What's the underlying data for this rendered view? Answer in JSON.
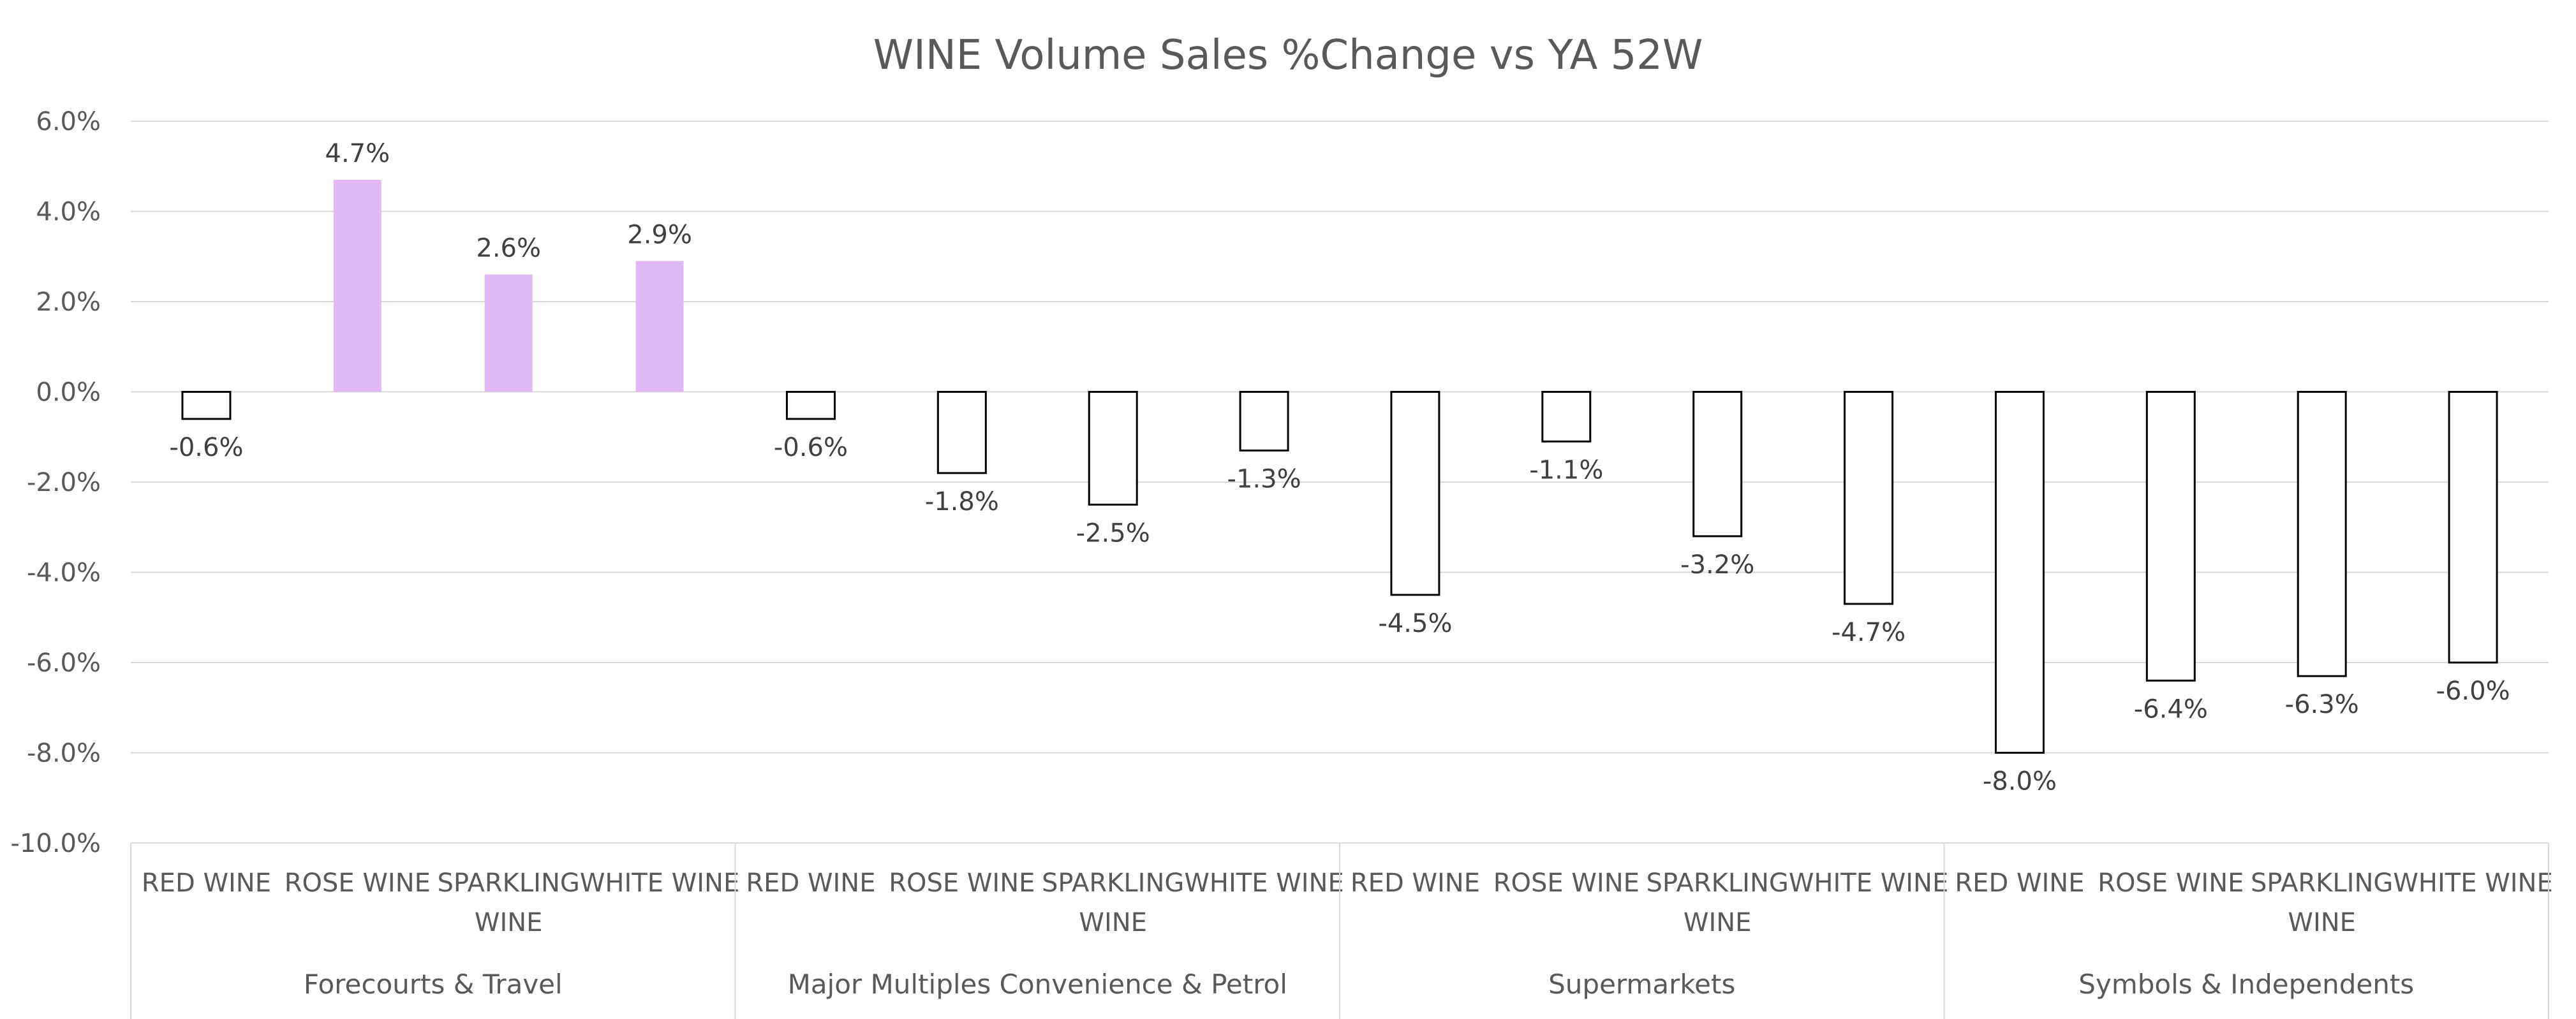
{
  "chart_data": {
    "type": "bar",
    "title": "WINE Volume Sales %Change vs YA  52W",
    "ylim": [
      -10,
      6
    ],
    "yticks": [
      6,
      4,
      2,
      0,
      -2,
      -4,
      -6,
      -8,
      -10
    ],
    "ytick_labels": [
      "6.0%",
      "4.0%",
      "2.0%",
      "0.0%",
      "-2.0%",
      "-4.0%",
      "-6.0%",
      "-8.0%",
      "-10.0%"
    ],
    "grid": true,
    "legend": "none",
    "colors": {
      "positive_fill": "#e0b8f5",
      "negative_fill": "#ffffff",
      "negative_stroke": "#000000"
    },
    "groups": [
      {
        "name": "Forecourts & Travel",
        "bars": [
          {
            "category": [
              "RED WINE"
            ],
            "value": -0.6,
            "label": "-0.6%"
          },
          {
            "category": [
              "ROSE WINE"
            ],
            "value": 4.7,
            "label": "4.7%"
          },
          {
            "category": [
              "SPARKLING",
              "WINE"
            ],
            "value": 2.6,
            "label": "2.6%"
          },
          {
            "category": [
              "WHITE WINE"
            ],
            "value": 2.9,
            "label": "2.9%"
          }
        ]
      },
      {
        "name": "Major Multiples Convenience & Petrol",
        "bars": [
          {
            "category": [
              "RED WINE"
            ],
            "value": -0.6,
            "label": "-0.6%"
          },
          {
            "category": [
              "ROSE WINE"
            ],
            "value": -1.8,
            "label": "-1.8%"
          },
          {
            "category": [
              "SPARKLING",
              "WINE"
            ],
            "value": -2.5,
            "label": "-2.5%"
          },
          {
            "category": [
              "WHITE WINE"
            ],
            "value": -1.3,
            "label": "-1.3%"
          }
        ]
      },
      {
        "name": "Supermarkets",
        "bars": [
          {
            "category": [
              "RED WINE"
            ],
            "value": -4.5,
            "label": "-4.5%"
          },
          {
            "category": [
              "ROSE WINE"
            ],
            "value": -1.1,
            "label": "-1.1%"
          },
          {
            "category": [
              "SPARKLING",
              "WINE"
            ],
            "value": -3.2,
            "label": "-3.2%"
          },
          {
            "category": [
              "WHITE WINE"
            ],
            "value": -4.7,
            "label": "-4.7%"
          }
        ]
      },
      {
        "name": "Symbols & Independents",
        "bars": [
          {
            "category": [
              "RED WINE"
            ],
            "value": -8.0,
            "label": "-8.0%"
          },
          {
            "category": [
              "ROSE WINE"
            ],
            "value": -6.4,
            "label": "-6.4%"
          },
          {
            "category": [
              "SPARKLING",
              "WINE"
            ],
            "value": -6.3,
            "label": "-6.3%"
          },
          {
            "category": [
              "WHITE WINE"
            ],
            "value": -6.0,
            "label": "-6.0%"
          }
        ]
      }
    ]
  }
}
